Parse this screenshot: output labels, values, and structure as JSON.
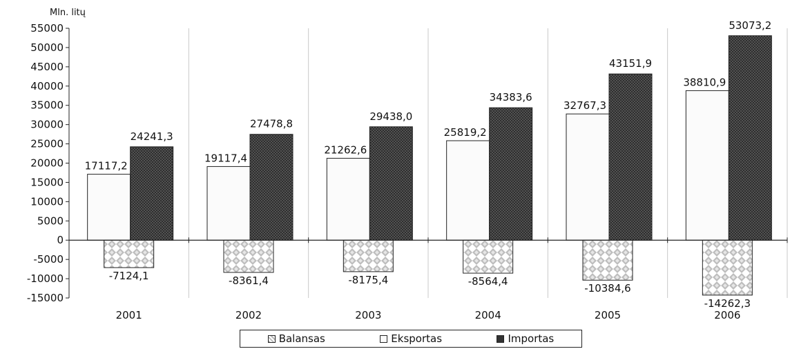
{
  "chart_data": {
    "type": "bar",
    "unit_label": "Mln. litų",
    "categories": [
      "2001",
      "2002",
      "2003",
      "2004",
      "2005",
      "2006"
    ],
    "series": [
      {
        "name": "Balansas",
        "values": [
          -7124.1,
          -8361.4,
          -8175.4,
          -8564.4,
          -10384.6,
          -14262.3
        ],
        "labels": [
          "-7124,1",
          "-8361,4",
          "-8175,4",
          "-8564,4",
          "-10384,6",
          "-14262,3"
        ],
        "color": "#b8b8b8"
      },
      {
        "name": "Eksportas",
        "values": [
          17117.2,
          19117.4,
          21262.6,
          25819.2,
          32767.3,
          38810.9
        ],
        "labels": [
          "17117,2",
          "19117,4",
          "21262,6",
          "25819,2",
          "32767,3",
          "38810,9"
        ],
        "color": "#fbfbfb"
      },
      {
        "name": "Importas",
        "values": [
          24241.3,
          27478.8,
          29438.0,
          34383.6,
          43151.9,
          53073.2
        ],
        "labels": [
          "24241,3",
          "27478,8",
          "29438,0",
          "34383,6",
          "43151,9",
          "53073,2"
        ],
        "color": "#333333"
      }
    ],
    "yticks": [
      55000,
      50000,
      45000,
      40000,
      35000,
      30000,
      25000,
      20000,
      15000,
      10000,
      5000,
      0,
      -5000,
      -10000,
      -15000
    ],
    "ylim": [
      -15000,
      55000
    ],
    "grid": true,
    "legend_position": "bottom"
  }
}
